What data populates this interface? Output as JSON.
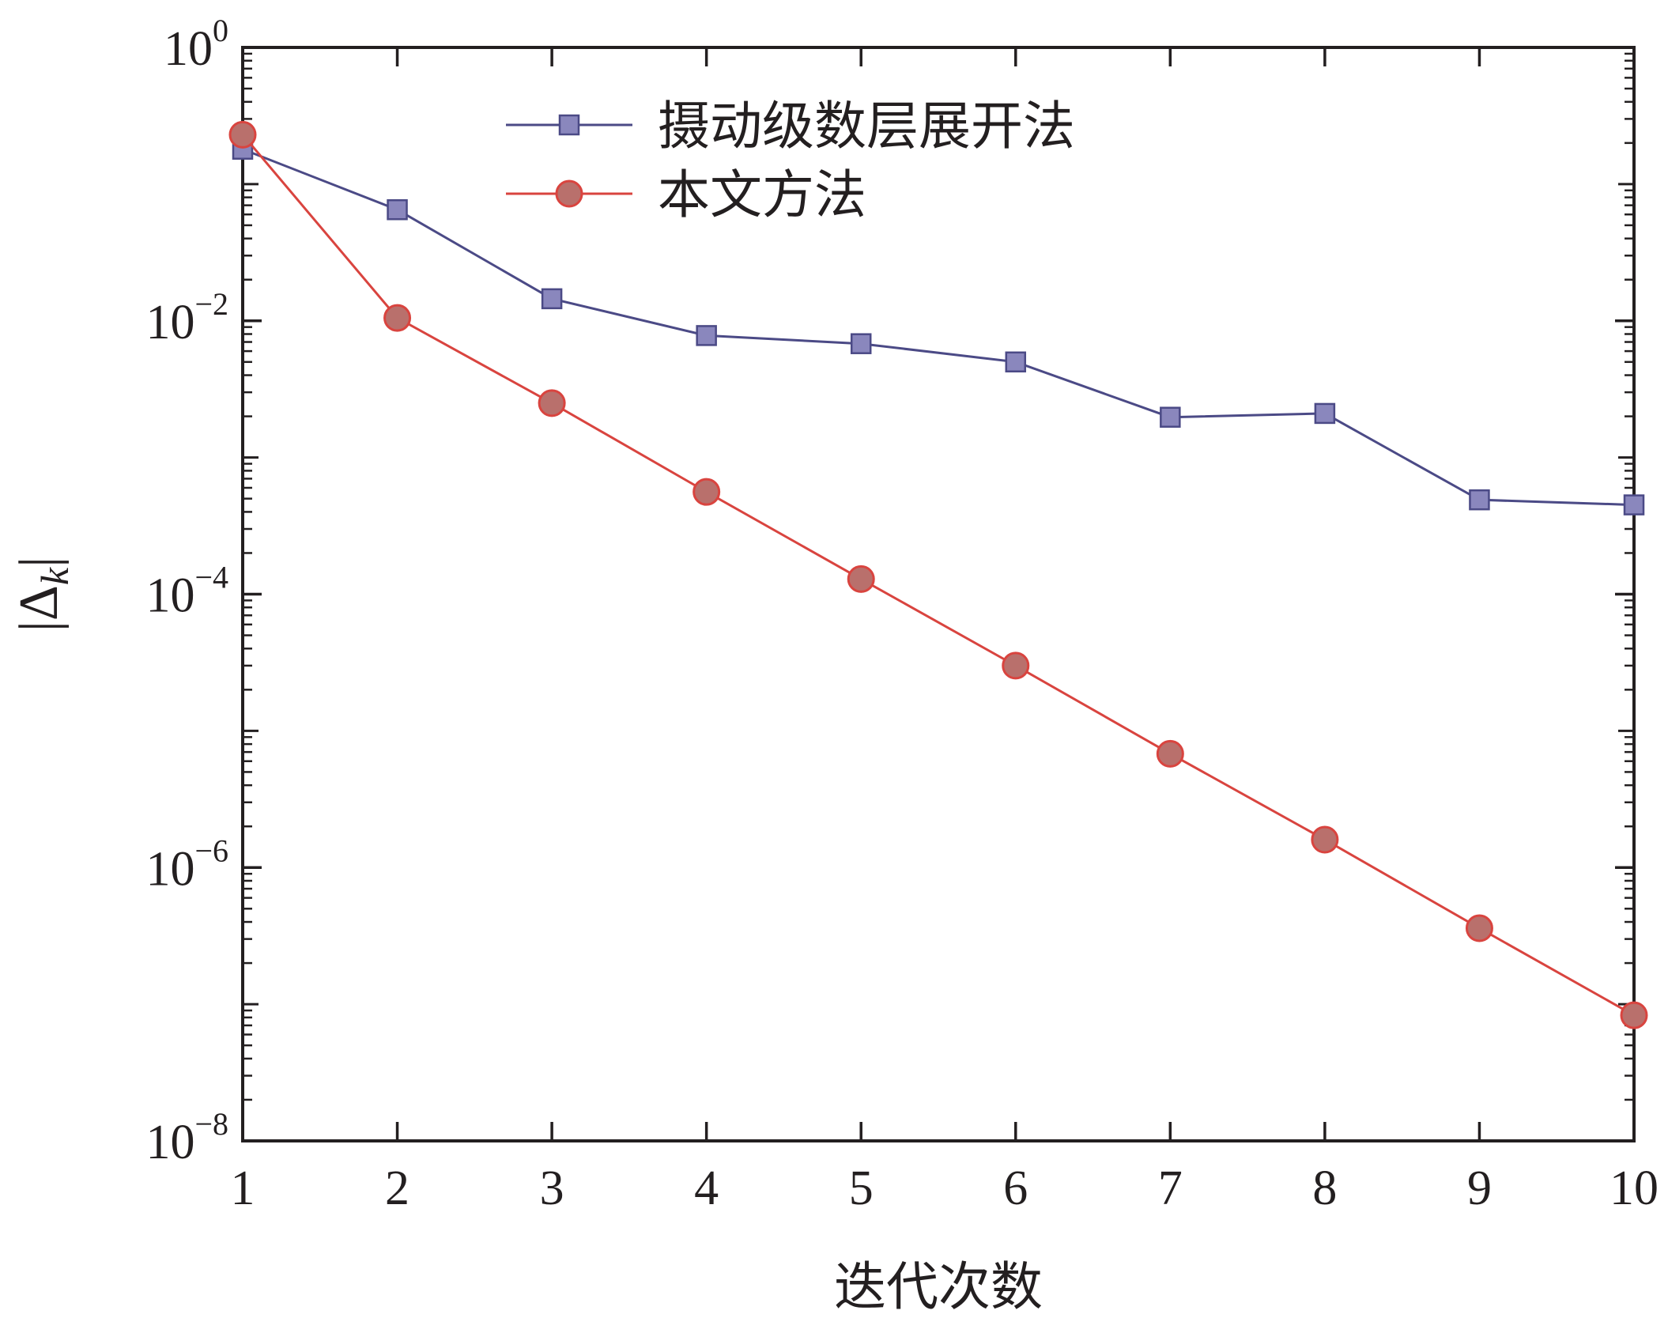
{
  "chart_data": {
    "type": "line",
    "xlabel": "迭代次数",
    "ylabel": "|Δk|",
    "ylabel_parts": {
      "main": "|Δ",
      "sub": "k",
      "end": "|"
    },
    "x": [
      1,
      2,
      3,
      4,
      5,
      6,
      7,
      8,
      9,
      10
    ],
    "xlim": [
      1,
      10
    ],
    "ylim": [
      1e-08,
      1
    ],
    "yscale": "log",
    "y_ticks": [
      {
        "base": "10",
        "exp": "0",
        "value": 1
      },
      {
        "base": "10",
        "exp": "−2",
        "value": 0.01
      },
      {
        "base": "10",
        "exp": "−4",
        "value": 0.0001
      },
      {
        "base": "10",
        "exp": "−6",
        "value": 1e-06
      },
      {
        "base": "10",
        "exp": "−8",
        "value": 1e-08
      }
    ],
    "x_tick_labels": [
      "1",
      "2",
      "3",
      "4",
      "5",
      "6",
      "7",
      "8",
      "9",
      "10"
    ],
    "grid": false,
    "legend_position": "top-center",
    "series": [
      {
        "name": "摄动级数层展开法",
        "marker": "square",
        "color": "#4b4a86",
        "fill": "#8a87bd",
        "values": [
          0.18,
          0.065,
          0.0145,
          0.0078,
          0.0068,
          0.005,
          0.00197,
          0.0021,
          0.00049,
          0.00045
        ]
      },
      {
        "name": "本文方法",
        "marker": "circle",
        "color": "#d9443f",
        "fill": "#b9706c",
        "values": [
          0.23,
          0.0105,
          0.0025,
          0.00056,
          0.000129,
          3e-05,
          6.8e-06,
          1.6e-06,
          3.6e-07,
          8.3e-08
        ]
      }
    ]
  }
}
